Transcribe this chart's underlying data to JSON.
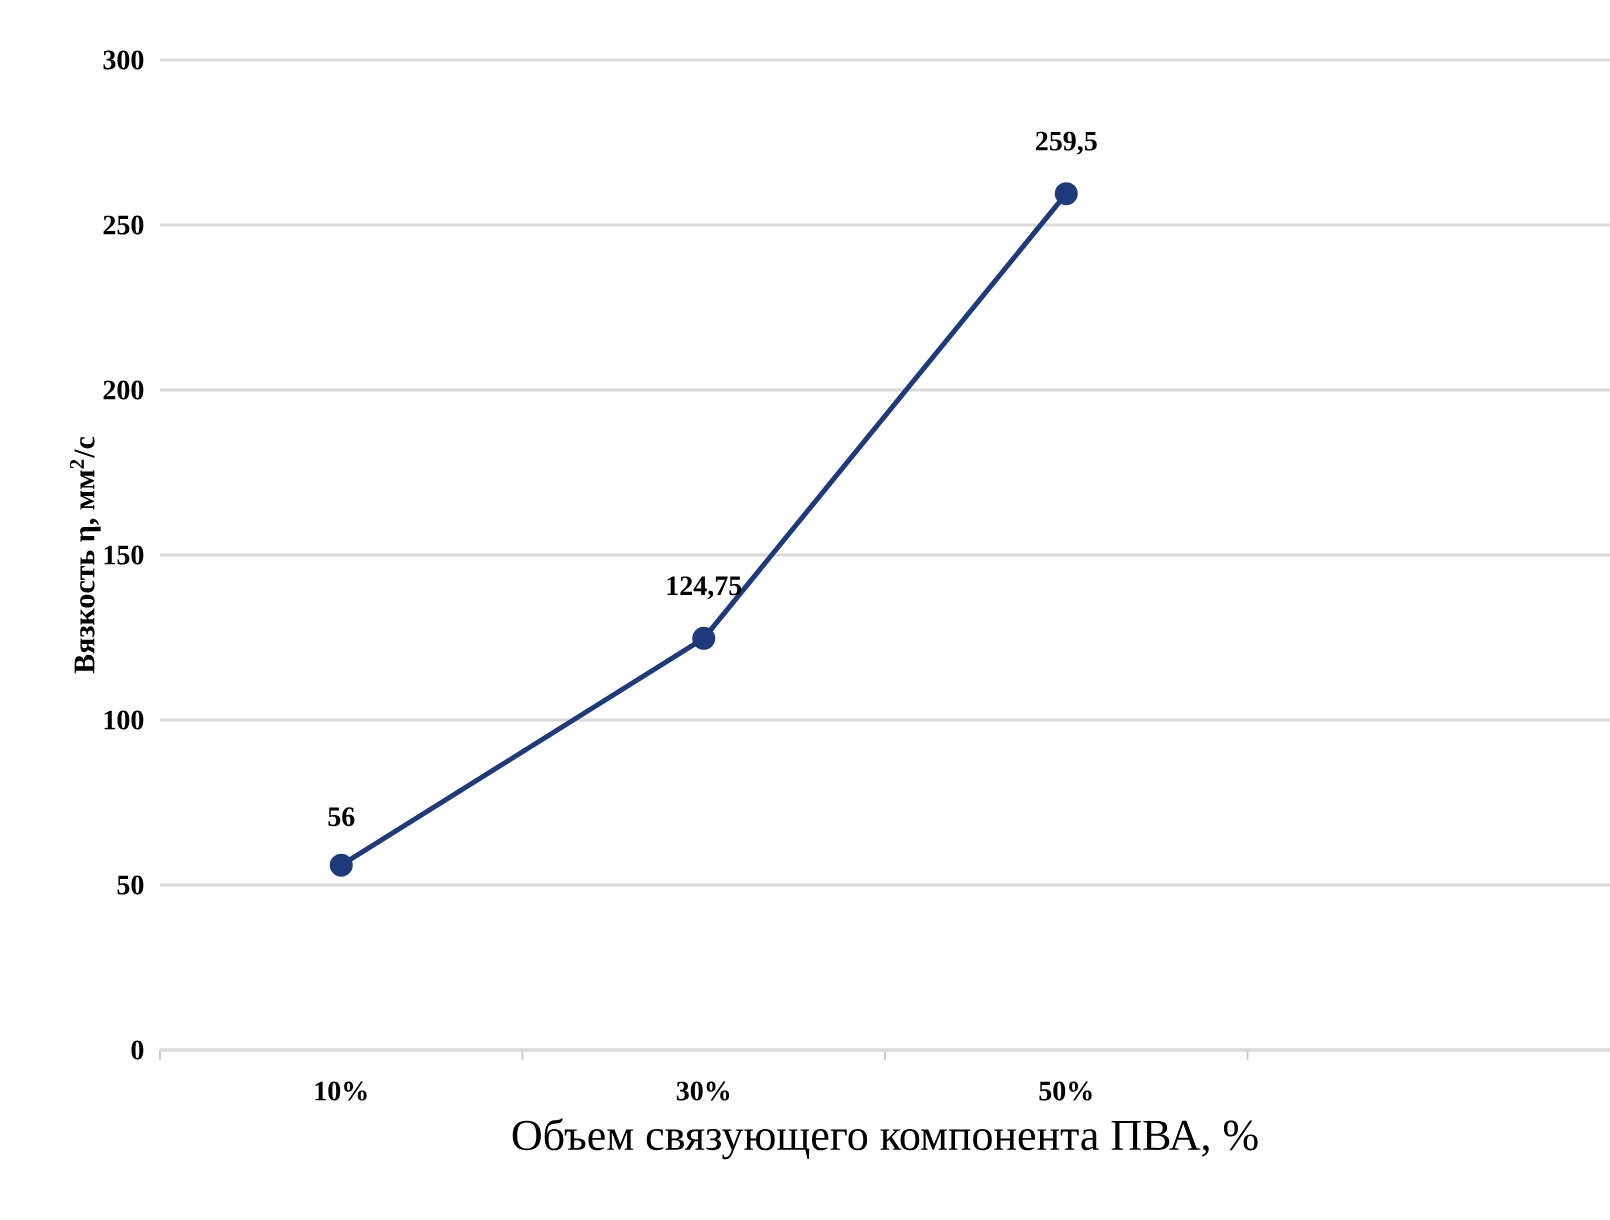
{
  "chart_data": {
    "type": "line",
    "xlabel": "Объем связующего компонента ПВА, %",
    "ylabel": "Вязкость η, мм$^{2}$/с",
    "categories": [
      "10%",
      "30%",
      "50%",
      null
    ],
    "series": [
      {
        "color": "#1f3a7a",
        "values": [
          56,
          124.75,
          259.5,
          null
        ],
        "value_labels": [
          "56",
          "124,75",
          "259,5",
          null
        ]
      }
    ],
    "ylim": [
      0,
      300
    ],
    "yticks": [
      0,
      50,
      100,
      150,
      200,
      250,
      300
    ],
    "grid": "y",
    "marker": "circle",
    "line_style": "solid"
  }
}
